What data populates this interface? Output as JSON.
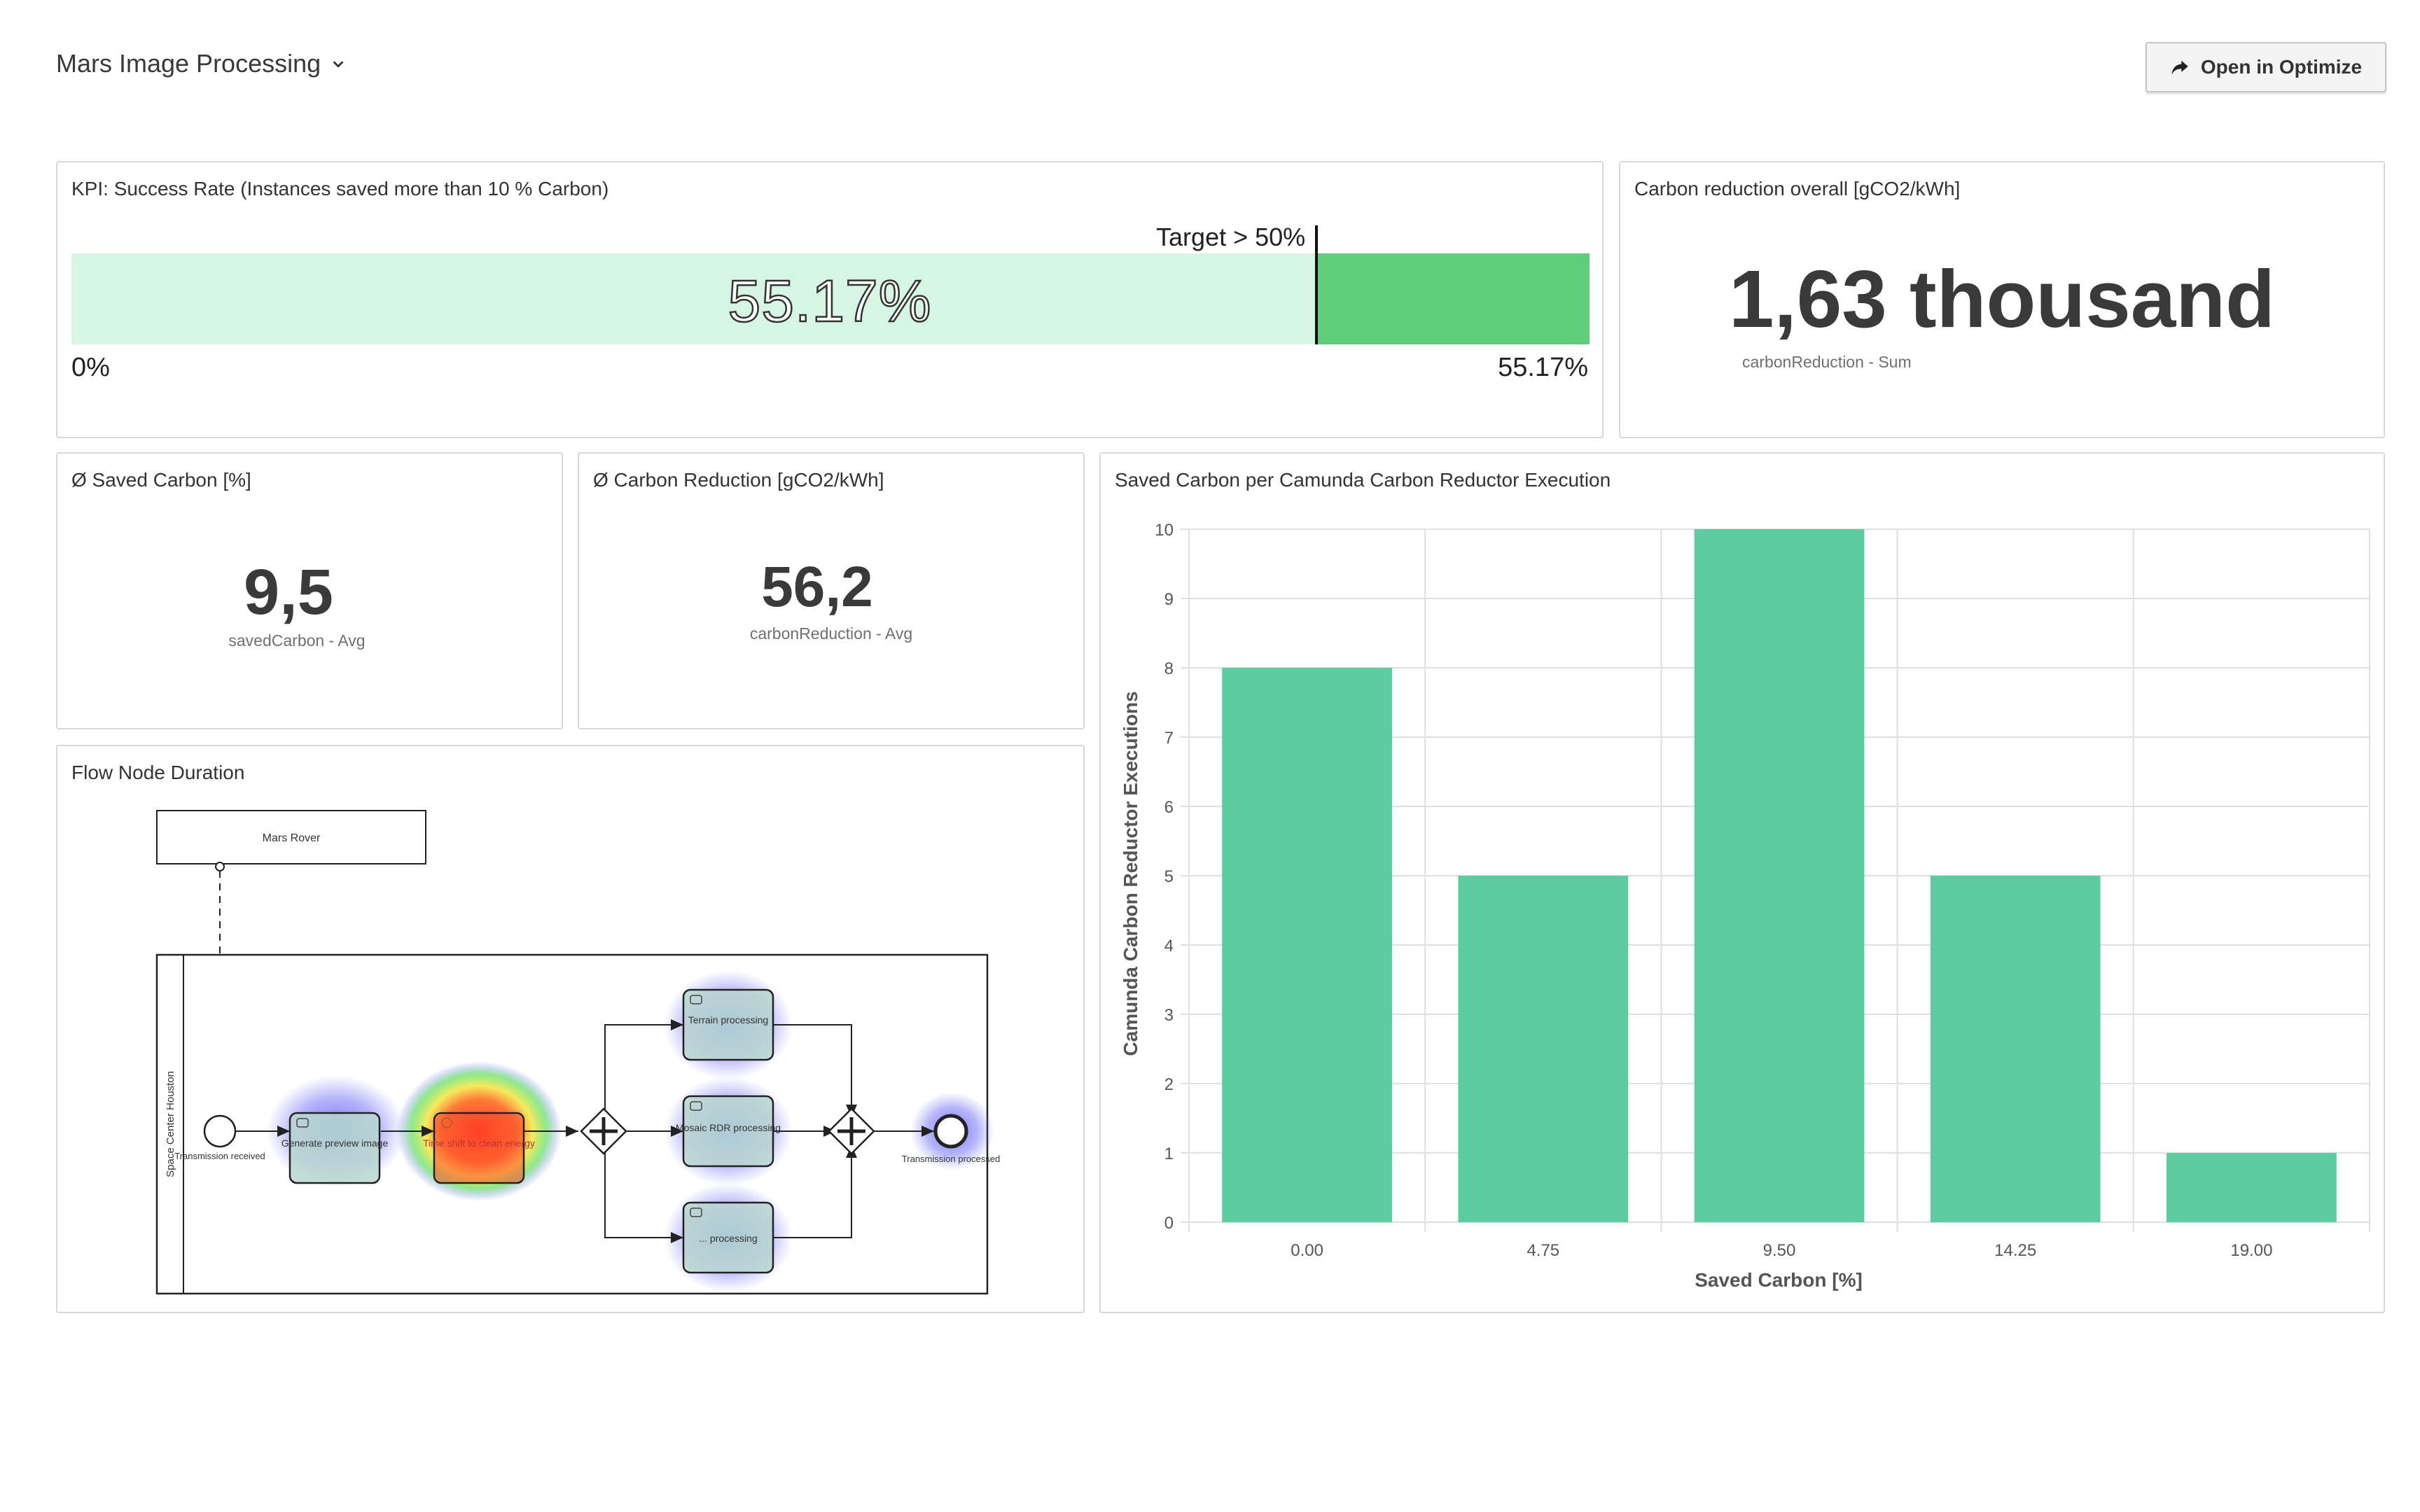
{
  "header": {
    "title": "Mars Image Processing",
    "open_button_label": "Open in Optimize"
  },
  "kpi": {
    "title": "KPI: Success Rate (Instances saved more than 10 % Carbon)",
    "value_label": "55.17%",
    "value_percent": 55.17,
    "target_percent": 50,
    "target_label": "Target > 50%",
    "min_label": "0%",
    "max_label": "55.17%"
  },
  "carbon_overall": {
    "title": "Carbon reduction overall [gCO2/kWh]",
    "value": "1,63 thousand",
    "subtitle": "carbonReduction - Sum"
  },
  "saved_carbon": {
    "title": "Ø Saved Carbon [%]",
    "value": "9,5",
    "subtitle": "savedCarbon - Avg"
  },
  "carbon_reduction_avg": {
    "title": "Ø Carbon Reduction [gCO2/kWh]",
    "value": "56,2",
    "subtitle": "carbonReduction - Avg"
  },
  "flow": {
    "title": "Flow Node Duration",
    "pool_top": "Mars Rover",
    "lane": "Space Center Houston",
    "start_event": "Transmission received",
    "task_preview": "Generate preview image",
    "task_timeshift": "Time shift to clean energy",
    "task_terrain": "Terrain processing",
    "task_mosaic": "Mosaic RDR processing",
    "task_other": "... processing",
    "end_event": "Transmission processed"
  },
  "chart_data": {
    "type": "bar",
    "title": "Saved Carbon per Camunda Carbon Reductor Execution",
    "categories": [
      "0.00",
      "4.75",
      "9.50",
      "14.25",
      "19.00"
    ],
    "values": [
      8,
      5,
      10,
      5,
      1
    ],
    "xlabel": "Saved Carbon [%]",
    "ylabel": "Camunda Carbon Reductor Executions",
    "ylim": [
      0,
      10
    ],
    "yticks": [
      0,
      1,
      2,
      3,
      4,
      5,
      6,
      7,
      8,
      9,
      10
    ],
    "grid": true,
    "bar_color": "#5ecca1"
  },
  "colors": {
    "bar_fill": "#5fcd7b",
    "bar_bg": "#d6f5e3"
  }
}
